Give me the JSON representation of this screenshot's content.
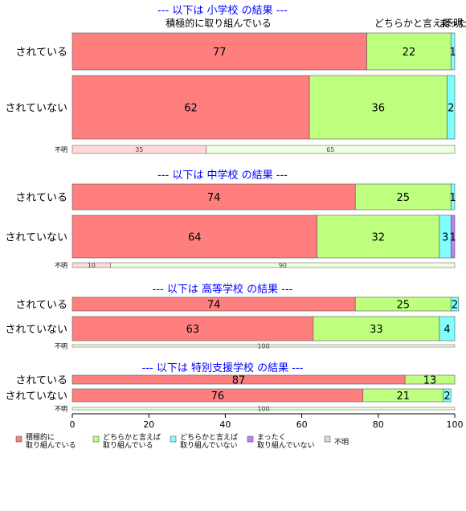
{
  "chart_data": {
    "type": "bar",
    "orientation": "horizontal",
    "stacked": true,
    "xlim": [
      0,
      100
    ],
    "x_ticks": [
      0,
      20,
      40,
      60,
      80,
      100
    ],
    "top_labels": [
      "積極的に取り組んでいる",
      "どちらかと言えば",
      "まった",
      "不明"
    ],
    "legend": {
      "placement": "bottom-left",
      "entries": [
        {
          "label_lines": [
            "積極的に",
            "取り組んでいる"
          ],
          "color": "#ff7f7f"
        },
        {
          "label_lines": [
            "どちらかと言えば",
            "取り組んでいる"
          ],
          "color": "#bfff7f"
        },
        {
          "label_lines": [
            "どちらかと言えば",
            "取り組んでいない"
          ],
          "color": "#7fffff"
        },
        {
          "label_lines": [
            "まったく",
            "取り組んでいない"
          ],
          "color": "#bf7fff"
        },
        {
          "label_lines": [
            "不明"
          ],
          "color": "#d9d9d9"
        }
      ]
    },
    "series_colors": [
      "#ff7f7f",
      "#bfff7f",
      "#7fffff",
      "#bf7fff"
    ],
    "unknown_colors": [
      "#ffd9d9",
      "#eeffdd"
    ],
    "panels": [
      {
        "title": "--- 以下は 小学校 の結果 ---",
        "rows": [
          {
            "label": "されている",
            "values": [
              77,
              22,
              1,
              0
            ]
          },
          {
            "label": "されていない",
            "values": [
              62,
              36,
              2,
              0
            ]
          }
        ],
        "unknown": {
          "label": "不明",
          "values": [
            35,
            65
          ]
        }
      },
      {
        "title": "--- 以下は 中学校 の結果 ---",
        "rows": [
          {
            "label": "されている",
            "values": [
              74,
              25,
              1,
              0
            ]
          },
          {
            "label": "されていない",
            "values": [
              64,
              32,
              3,
              1
            ]
          }
        ],
        "unknown": {
          "label": "不明",
          "values": [
            10,
            90
          ]
        }
      },
      {
        "title": "--- 以下は 高等学校 の結果 ---",
        "rows": [
          {
            "label": "されている",
            "values": [
              74,
              25,
              2,
              0
            ]
          },
          {
            "label": "されていない",
            "values": [
              63,
              33,
              4,
              0
            ]
          }
        ],
        "unknown": {
          "label": "不明",
          "values": [
            0,
            100
          ]
        }
      },
      {
        "title": "--- 以下は 特別支援学校 の結果 ---",
        "rows": [
          {
            "label": "されている",
            "values": [
              87,
              13,
              0,
              0
            ]
          },
          {
            "label": "されていない",
            "values": [
              76,
              21,
              2,
              0
            ]
          }
        ],
        "unknown": {
          "label": "不明",
          "values": [
            0,
            100
          ]
        }
      }
    ]
  }
}
